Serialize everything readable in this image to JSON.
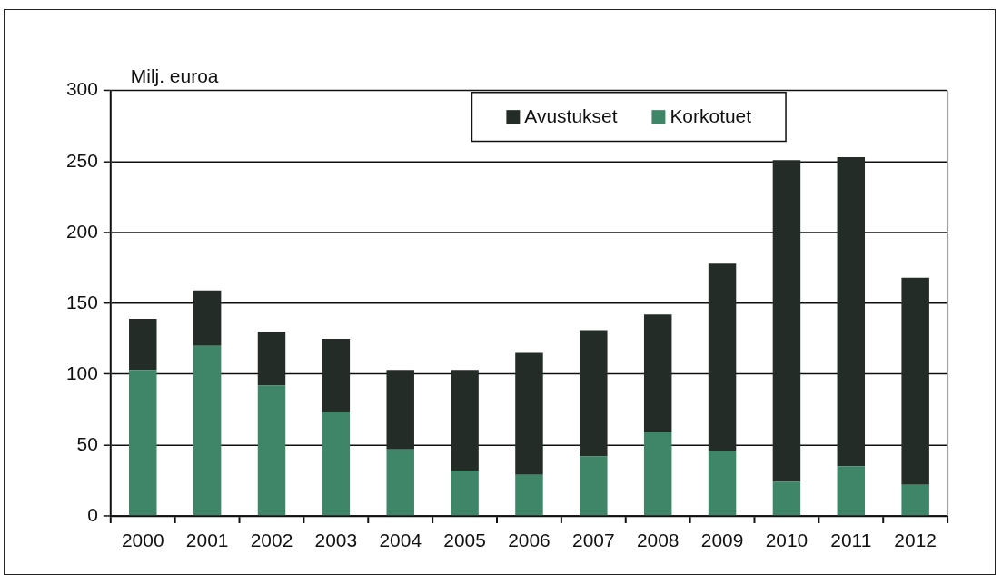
{
  "chart_data": {
    "type": "bar",
    "ylabel": "Milj. euroa",
    "categories": [
      "2000",
      "2001",
      "2002",
      "2003",
      "2004",
      "2005",
      "2006",
      "2007",
      "2008",
      "2009",
      "2010",
      "2011",
      "2012"
    ],
    "series": [
      {
        "name": "Korkotuet",
        "color": "#3f8568",
        "values": [
          103,
          120,
          92,
          73,
          47,
          32,
          29,
          42,
          59,
          46,
          24,
          35,
          22
        ]
      },
      {
        "name": "Avustukset",
        "color": "#232c27",
        "values": [
          36,
          39,
          38,
          52,
          56,
          71,
          86,
          89,
          83,
          132,
          227,
          218,
          146
        ]
      }
    ],
    "stacked": true,
    "ylim": [
      0,
      300
    ],
    "yticks": [
      0,
      50,
      100,
      150,
      200,
      250,
      300
    ],
    "grid": "y",
    "legend": "top"
  }
}
